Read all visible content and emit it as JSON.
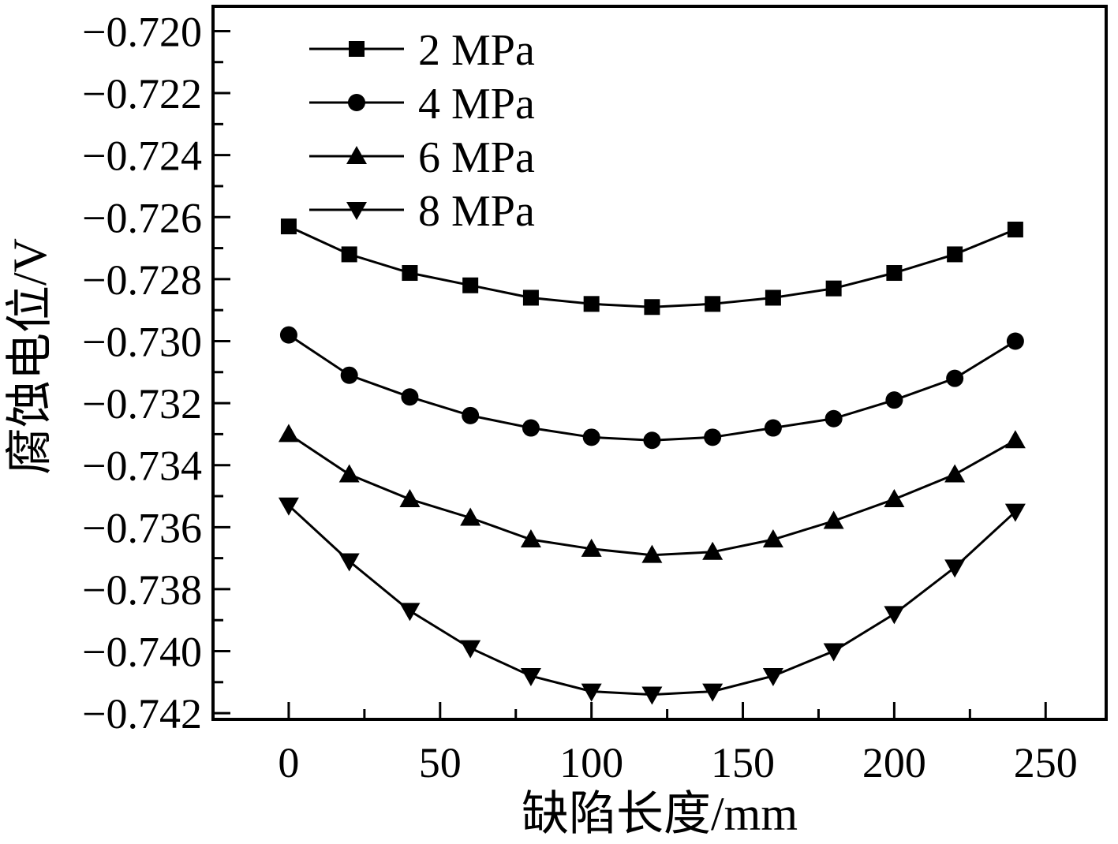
{
  "chart_data": {
    "type": "line",
    "title": "",
    "xlabel": "缺陷长度/mm",
    "ylabel": "腐蚀电位/V",
    "xlim": [
      -25,
      270
    ],
    "ylim": [
      -0.7422,
      -0.7192
    ],
    "grid": false,
    "legend_position": "top-left",
    "x_major_ticks": [
      0,
      50,
      100,
      150,
      200,
      250
    ],
    "x_minor_step": 25,
    "y_major_ticks": [
      -0.72,
      -0.722,
      -0.724,
      -0.726,
      -0.728,
      -0.73,
      -0.732,
      -0.734,
      -0.736,
      -0.738,
      -0.74,
      -0.742
    ],
    "y_minor_step": 0.001,
    "line_color": "#000000",
    "x": [
      0,
      20,
      40,
      60,
      80,
      100,
      120,
      140,
      160,
      180,
      200,
      220,
      240
    ],
    "series": [
      {
        "name": "2 MPa",
        "marker": "square",
        "values": [
          -0.7263,
          -0.7272,
          -0.7278,
          -0.7282,
          -0.7286,
          -0.7288,
          -0.7289,
          -0.7288,
          -0.7286,
          -0.7283,
          -0.7278,
          -0.7272,
          -0.7264
        ]
      },
      {
        "name": "4 MPa",
        "marker": "circle",
        "values": [
          -0.7298,
          -0.7311,
          -0.7318,
          -0.7324,
          -0.7328,
          -0.7331,
          -0.7332,
          -0.7331,
          -0.7328,
          -0.7325,
          -0.7319,
          -0.7312,
          -0.73
        ]
      },
      {
        "name": "6 MPa",
        "marker": "triangle-up",
        "values": [
          -0.733,
          -0.7343,
          -0.7351,
          -0.7357,
          -0.7364,
          -0.7367,
          -0.7369,
          -0.7368,
          -0.7364,
          -0.7358,
          -0.7351,
          -0.7343,
          -0.7332
        ]
      },
      {
        "name": "8 MPa",
        "marker": "triangle-down",
        "values": [
          -0.7353,
          -0.7371,
          -0.7387,
          -0.7399,
          -0.7408,
          -0.7413,
          -0.7414,
          -0.7413,
          -0.7408,
          -0.74,
          -0.7388,
          -0.7373,
          -0.7355
        ]
      }
    ]
  }
}
